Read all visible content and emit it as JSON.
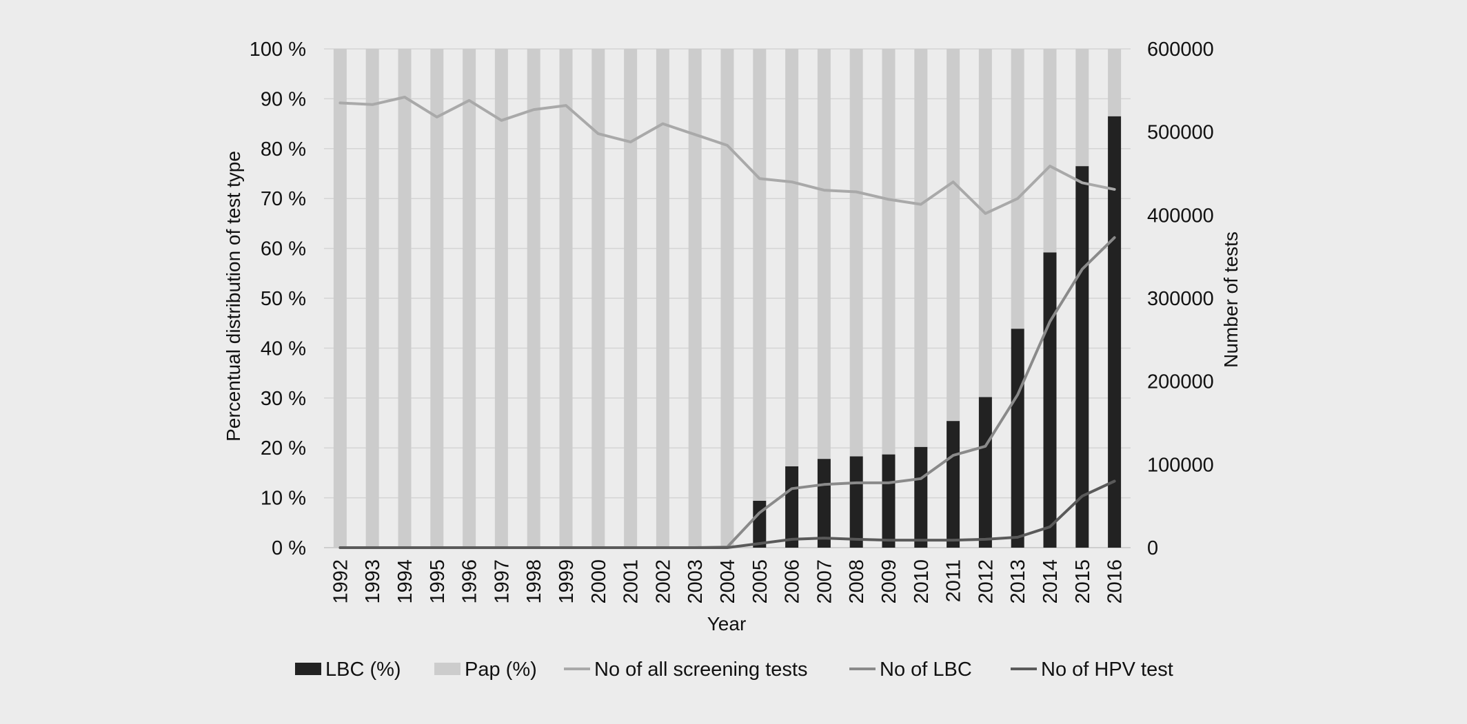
{
  "chart_data": {
    "type": "bar",
    "stacked": true,
    "categories": [
      "1992",
      "1993",
      "1994",
      "1995",
      "1996",
      "1997",
      "1998",
      "1999",
      "2000",
      "2001",
      "2002",
      "2003",
      "2004",
      "2005",
      "2006",
      "2007",
      "2008",
      "2009",
      "2010",
      "2011",
      "2012",
      "2013",
      "2014",
      "2015",
      "2016"
    ],
    "xlabel": "Year",
    "ylabel": "Percentual distribution of test type",
    "y2label": "Number of tests",
    "ylim": [
      0,
      100
    ],
    "y2lim": [
      0,
      600000
    ],
    "yticks": [
      "0 %",
      "10 %",
      "20 %",
      "30 %",
      "40 %",
      "50 %",
      "60 %",
      "70 %",
      "80 %",
      "90 %",
      "100 %"
    ],
    "y2ticks": [
      "0",
      "100000",
      "200000",
      "300000",
      "400000",
      "500000",
      "600000"
    ],
    "grid": true,
    "legend_position": "bottom",
    "bar_series": [
      {
        "name": "LBC (%)",
        "color": "#222222",
        "values": [
          0,
          0,
          0,
          0,
          0,
          0,
          0,
          0,
          0,
          0,
          0,
          0,
          0,
          9.4,
          16.3,
          17.8,
          18.3,
          18.7,
          20.2,
          25.4,
          30.2,
          43.9,
          59.2,
          76.5,
          86.5
        ]
      },
      {
        "name": "Pap (%)",
        "color": "#cccccc",
        "values": [
          100,
          100,
          100,
          100,
          100,
          100,
          100,
          100,
          100,
          100,
          100,
          100,
          100,
          90.6,
          83.7,
          82.2,
          81.7,
          81.3,
          79.8,
          74.6,
          69.8,
          56.1,
          40.8,
          23.5,
          13.5
        ]
      }
    ],
    "line_series": [
      {
        "name": "No of all screening tests",
        "color": "#a9a9a9",
        "axis": "right",
        "values": [
          535000,
          533000,
          542000,
          518000,
          538000,
          514000,
          527000,
          532000,
          498000,
          488000,
          510000,
          497000,
          484000,
          444000,
          440000,
          430000,
          428000,
          419000,
          413000,
          440000,
          402000,
          420000,
          459000,
          439000,
          431000
        ]
      },
      {
        "name": "No of LBC",
        "color": "#8a8a8a",
        "axis": "right",
        "values": [
          0,
          0,
          0,
          0,
          0,
          0,
          0,
          0,
          0,
          0,
          0,
          0,
          800,
          42000,
          71000,
          76000,
          78000,
          78000,
          83000,
          111000,
          122000,
          184000,
          272000,
          335000,
          373000
        ]
      },
      {
        "name": "No of HPV test",
        "color": "#5a5a5a",
        "axis": "right",
        "values": [
          0,
          0,
          0,
          0,
          0,
          0,
          0,
          0,
          0,
          0,
          0,
          0,
          0,
          5000,
          10000,
          11500,
          10000,
          9000,
          9000,
          9000,
          10000,
          12500,
          25000,
          62000,
          80000
        ]
      }
    ]
  }
}
